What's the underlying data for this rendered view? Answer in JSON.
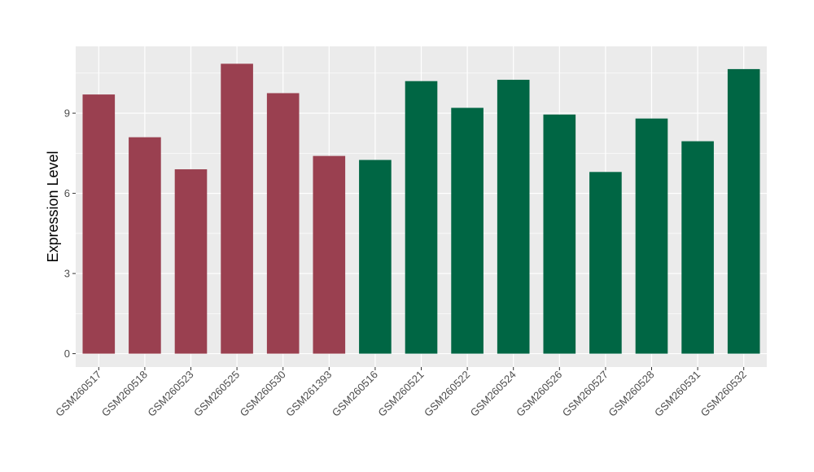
{
  "chart_data": {
    "type": "bar",
    "title": "",
    "xlabel": "",
    "ylabel": "Expression Level",
    "ylim": [
      -0.5,
      11.5
    ],
    "yticks": [
      0,
      3,
      6,
      9
    ],
    "grid": true,
    "legend": "none",
    "categories": [
      "GSM260517",
      "GSM260518",
      "GSM260523",
      "GSM260525",
      "GSM260530",
      "GSM261393",
      "GSM260516",
      "GSM260521",
      "GSM260522",
      "GSM260524",
      "GSM260526",
      "GSM260527",
      "GSM260528",
      "GSM260531",
      "GSM260532"
    ],
    "values": [
      9.7,
      8.1,
      6.9,
      10.85,
      9.75,
      7.4,
      7.25,
      10.2,
      9.2,
      10.25,
      8.95,
      6.8,
      8.8,
      7.95,
      10.65
    ],
    "groups": [
      "A",
      "A",
      "A",
      "A",
      "A",
      "A",
      "B",
      "B",
      "B",
      "B",
      "B",
      "B",
      "B",
      "B",
      "B"
    ],
    "group_colors": {
      "A": "#9a4050",
      "B": "#006644"
    }
  },
  "style": {
    "panel_background": "#ebebeb",
    "gridline_color": "#ffffff",
    "tick_color": "#333333"
  }
}
